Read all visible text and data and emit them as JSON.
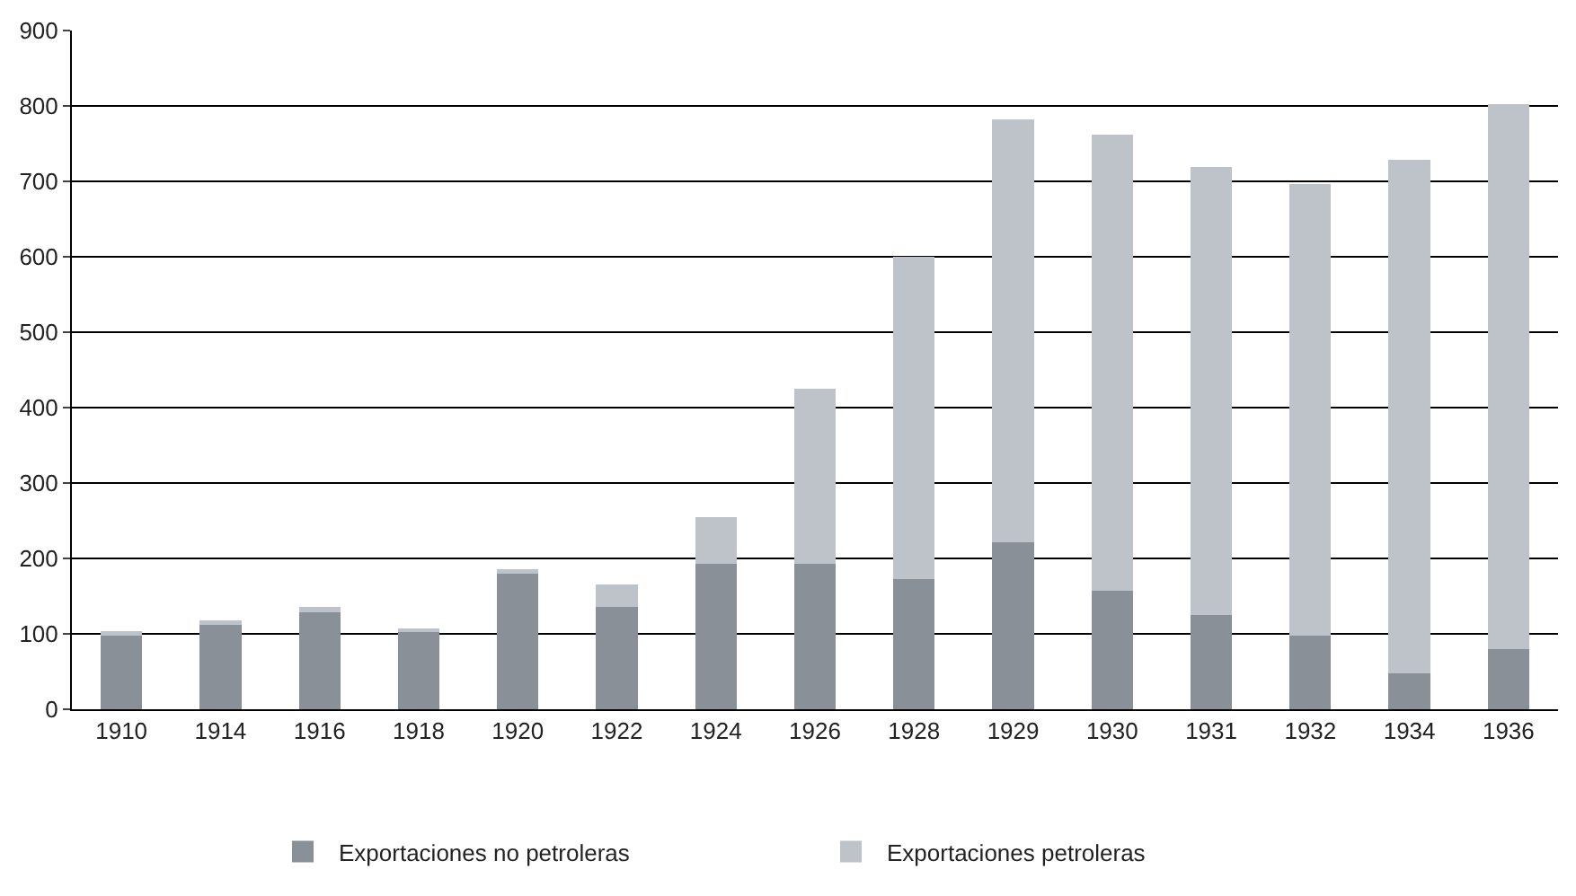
{
  "chart_data": {
    "type": "bar",
    "stacked": true,
    "categories": [
      "1910",
      "1914",
      "1916",
      "1918",
      "1920",
      "1922",
      "1924",
      "1926",
      "1928",
      "1929",
      "1930",
      "1931",
      "1932",
      "1934",
      "1936"
    ],
    "series": [
      {
        "name": "Exportaciones no petroleras",
        "color": "#8a9098",
        "values": [
          98,
          114,
          128,
          103,
          180,
          136,
          193,
          193,
          173,
          221,
          157,
          125,
          98,
          48,
          80
        ]
      },
      {
        "name": "Exportaciones petroleras",
        "color": "#bec3ca",
        "values": [
          6,
          4,
          8,
          4,
          6,
          30,
          62,
          232,
          427,
          561,
          605,
          594,
          599,
          680,
          722
        ]
      }
    ],
    "ylim": [
      0,
      900
    ],
    "yticks": [
      0,
      100,
      200,
      300,
      400,
      500,
      600,
      700,
      800,
      900
    ],
    "grid": "y",
    "legend": "bottom"
  }
}
